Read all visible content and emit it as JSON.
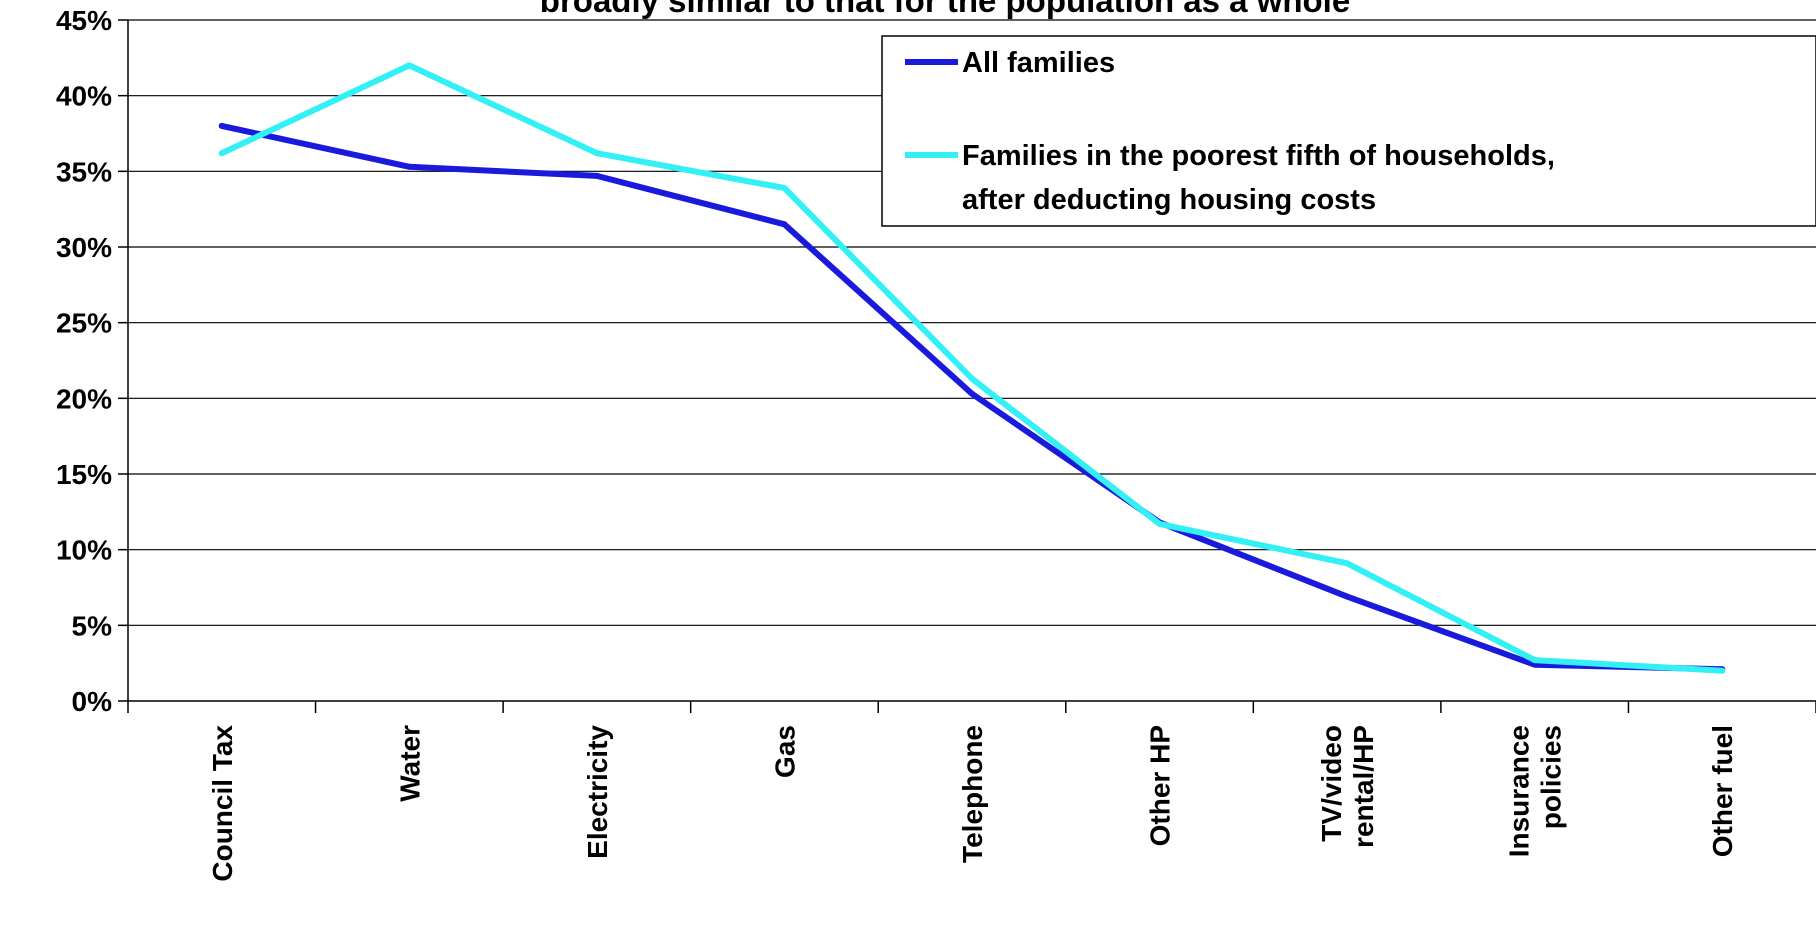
{
  "chart_data": {
    "type": "line",
    "title": "broadly similar to that for the population as a whole",
    "categories": [
      [
        "Council Tax"
      ],
      [
        "Water"
      ],
      [
        "Electricity"
      ],
      [
        "Gas"
      ],
      [
        "Telephone"
      ],
      [
        "Other HP"
      ],
      [
        "TV/video",
        "rental/HP"
      ],
      [
        "Insurance",
        "policies"
      ],
      [
        "Other fuel"
      ]
    ],
    "series": [
      {
        "name": "All families",
        "color": "#1a1adc",
        "values": [
          38.0,
          35.3,
          34.7,
          31.5,
          20.3,
          11.8,
          6.9,
          2.4,
          2.1
        ]
      },
      {
        "name_lines": [
          "Families in the poorest fifth of households,",
          "after deducting housing costs"
        ],
        "color": "#33f0f5",
        "values": [
          36.2,
          42.0,
          36.2,
          33.9,
          21.3,
          11.7,
          9.1,
          2.7,
          2.0
        ]
      }
    ],
    "y_ticks": [
      "0%",
      "5%",
      "10%",
      "15%",
      "20%",
      "25%",
      "30%",
      "35%",
      "40%",
      "45%"
    ],
    "ylim": [
      0,
      45
    ],
    "grid": true,
    "legend_position": "top-right"
  }
}
